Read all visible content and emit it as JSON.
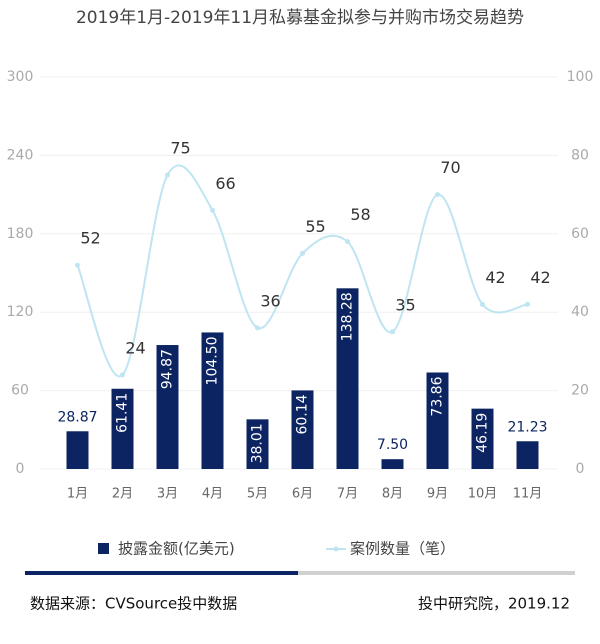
{
  "chart_data": {
    "type": "bar",
    "title": "2019年1月-2019年11月私募基金拟参与并购市场交易趋势",
    "categories": [
      "1月",
      "2月",
      "3月",
      "4月",
      "5月",
      "6月",
      "7月",
      "8月",
      "9月",
      "10月",
      "11月"
    ],
    "series": [
      {
        "name": "披露金额(亿美元)",
        "type": "bar",
        "color": "#0c2461",
        "values": [
          28.87,
          61.41,
          94.87,
          104.5,
          38.01,
          60.14,
          138.28,
          7.5,
          73.86,
          46.19,
          21.23
        ],
        "value_labels": [
          "28.87",
          "61.41",
          "94.87",
          "104.50",
          "38.01",
          "60.14",
          "138.28",
          "7.50",
          "73.86",
          "46.19",
          "21.23"
        ]
      },
      {
        "name": "案例数量（笔）",
        "type": "line",
        "axis": "y2",
        "color": "#bfe4f2",
        "values": [
          52,
          24,
          75,
          66,
          36,
          55,
          58,
          35,
          70,
          42,
          42
        ]
      }
    ],
    "ylim": [
      0,
      300
    ],
    "yticks": [
      0,
      60,
      120,
      180,
      240,
      300
    ],
    "y2lim": [
      0,
      100
    ],
    "y2ticks": [
      0,
      20,
      40,
      60,
      80,
      100
    ],
    "grid": true,
    "source": "数据来源：CVSource投中数据",
    "credit": "投中研究院，2019.12"
  }
}
